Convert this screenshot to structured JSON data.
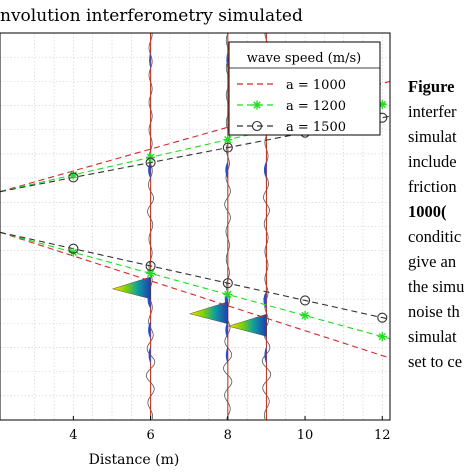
{
  "chart_data": {
    "type": "line",
    "title": "nvolution interferometry simulated",
    "xlabel": "Distance (m)",
    "xticks": [
      4,
      6,
      8,
      10,
      12
    ],
    "xlim": [
      2.1,
      12.2
    ],
    "ylim": [
      0,
      1
    ],
    "grid": true,
    "legend": {
      "title": "wave speed (m/s)",
      "placement": "top-right",
      "entries": [
        {
          "label": "a = 1000",
          "color": "#d62728",
          "style": "dash",
          "marker": "none"
        },
        {
          "label": "a = 1200",
          "color": "#22dd22",
          "style": "dash",
          "marker": "star"
        },
        {
          "label": "a = 1500",
          "color": "#333333",
          "style": "dash",
          "marker": "circle"
        }
      ]
    },
    "receivers_x": [
      6,
      8,
      9
    ],
    "series": [
      {
        "name": "a = 1000",
        "color": "#d62728",
        "upper": [
          [
            2.1,
            0.59
          ],
          [
            12.2,
            0.875
          ]
        ],
        "lower": [
          [
            2.1,
            0.485
          ],
          [
            12.2,
            0.16
          ]
        ]
      },
      {
        "name": "a = 1200",
        "color": "#22dd22",
        "upper": [
          [
            2.1,
            0.59
          ],
          [
            12.2,
            0.82
          ]
        ],
        "lower": [
          [
            2.1,
            0.485
          ],
          [
            12.2,
            0.21
          ]
        ],
        "markers_x_upper": [
          4,
          6,
          8,
          10,
          12
        ],
        "markers_x_lower": [
          4,
          6,
          8,
          10,
          12
        ]
      },
      {
        "name": "a = 1500",
        "color": "#333333",
        "upper": [
          [
            2.1,
            0.59
          ],
          [
            12.2,
            0.785
          ]
        ],
        "lower": [
          [
            2.1,
            0.485
          ],
          [
            12.2,
            0.26
          ]
        ],
        "markers_x_upper": [
          4,
          6,
          8,
          10,
          12
        ],
        "markers_x_lower": [
          4,
          6,
          8,
          10,
          12
        ]
      }
    ]
  },
  "caption": {
    "bold_head": "Figure",
    "lines": [
      "interfer",
      "simulat",
      "include",
      "friction"
    ],
    "bold_line": "1000(",
    "lines2": [
      "conditic",
      "give an",
      "the simu",
      "noise th",
      "simulat",
      "set to ce"
    ]
  }
}
